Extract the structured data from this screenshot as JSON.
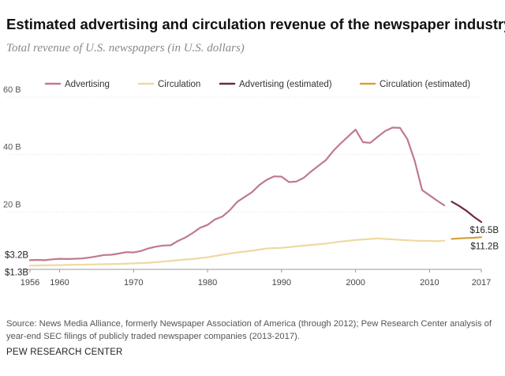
{
  "header": {
    "title": "Estimated advertising and circulation revenue of the newspaper industry",
    "subtitle": "Total revenue of U.S. newspapers (in U.S. dollars)"
  },
  "footer": {
    "source": "Source: News Media Alliance, formerly Newspaper Association of America (through 2012); Pew Research Center analysis of year-end SEC filings of publicly traded newspaper companies (2013-2017).",
    "credit": "PEW RESEARCH CENTER"
  },
  "chart_data": {
    "type": "line",
    "title": "Estimated advertising and circulation revenue of the newspaper industry",
    "subtitle": "Total revenue of U.S. newspapers (in U.S. dollars)",
    "xlabel": "",
    "ylabel": "",
    "xlim": [
      1956,
      2017
    ],
    "ylim": [
      0,
      60
    ],
    "x_ticks": [
      1956,
      1960,
      1970,
      1980,
      1990,
      2000,
      2010,
      2017
    ],
    "y_ticks": [
      {
        "value": 20,
        "label": "20 B"
      },
      {
        "value": 40,
        "label": "40 B"
      },
      {
        "value": 60,
        "label": "60 B"
      }
    ],
    "grid": "horizontal",
    "legend_position": "top",
    "series": [
      {
        "name": "Advertising",
        "color": "#c07a8d",
        "x": [
          1956,
          1957,
          1958,
          1959,
          1960,
          1961,
          1962,
          1963,
          1964,
          1965,
          1966,
          1967,
          1968,
          1969,
          1970,
          1971,
          1972,
          1973,
          1974,
          1975,
          1976,
          1977,
          1978,
          1979,
          1980,
          1981,
          1982,
          1983,
          1984,
          1985,
          1986,
          1987,
          1988,
          1989,
          1990,
          1991,
          1992,
          1993,
          1994,
          1995,
          1996,
          1997,
          1998,
          1999,
          2000,
          2001,
          2002,
          2003,
          2004,
          2005,
          2006,
          2007,
          2008,
          2009,
          2010,
          2011,
          2012
        ],
        "values": [
          3.2,
          3.3,
          3.2,
          3.5,
          3.7,
          3.6,
          3.7,
          3.8,
          4.1,
          4.5,
          5.0,
          5.1,
          5.5,
          6.0,
          5.9,
          6.4,
          7.3,
          7.9,
          8.3,
          8.4,
          9.9,
          11.1,
          12.7,
          14.5,
          15.5,
          17.4,
          18.4,
          20.6,
          23.5,
          25.2,
          26.9,
          29.4,
          31.2,
          32.4,
          32.3,
          30.4,
          30.6,
          31.9,
          34.1,
          36.1,
          38.1,
          41.3,
          43.9,
          46.3,
          48.7,
          44.3,
          44.1,
          46.2,
          48.2,
          49.4,
          49.3,
          45.4,
          37.8,
          27.6,
          25.8,
          24.0,
          22.3
        ]
      },
      {
        "name": "Circulation",
        "color": "#eed9a0",
        "x": [
          1956,
          1958,
          1960,
          1962,
          1964,
          1966,
          1968,
          1970,
          1972,
          1974,
          1976,
          1978,
          1980,
          1982,
          1984,
          1986,
          1988,
          1990,
          1992,
          1994,
          1996,
          1998,
          2000,
          2002,
          2003,
          2004,
          2006,
          2008,
          2010,
          2011,
          2012
        ],
        "values": [
          1.3,
          1.4,
          1.5,
          1.6,
          1.7,
          1.8,
          1.9,
          2.1,
          2.3,
          2.7,
          3.2,
          3.6,
          4.2,
          5.1,
          5.9,
          6.5,
          7.3,
          7.5,
          8.0,
          8.5,
          9.0,
          9.7,
          10.2,
          10.6,
          10.8,
          10.6,
          10.3,
          10.0,
          9.9,
          9.8,
          10.0
        ]
      },
      {
        "name": "Advertising (estimated)",
        "color": "#6e2b3e",
        "x": [
          2013,
          2014,
          2015,
          2016,
          2017
        ],
        "values": [
          23.6,
          22.1,
          20.4,
          18.3,
          16.5
        ]
      },
      {
        "name": "Circulation (estimated)",
        "color": "#d4a23a",
        "x": [
          2013,
          2014,
          2015,
          2016,
          2017
        ],
        "values": [
          10.6,
          10.8,
          10.9,
          11.0,
          11.2
        ]
      }
    ],
    "annotations": [
      {
        "text": "$3.2B",
        "x": 1956,
        "y": 3.2,
        "side": "left",
        "color": "#222"
      },
      {
        "text": "$1.3B",
        "x": 1956,
        "y": 1.3,
        "side": "left",
        "color": "#222"
      },
      {
        "text": "$16.5B",
        "x": 2017,
        "y": 16.5,
        "side": "right",
        "color": "#222"
      },
      {
        "text": "$11.2B",
        "x": 2017,
        "y": 11.2,
        "side": "right",
        "color": "#222"
      }
    ]
  }
}
